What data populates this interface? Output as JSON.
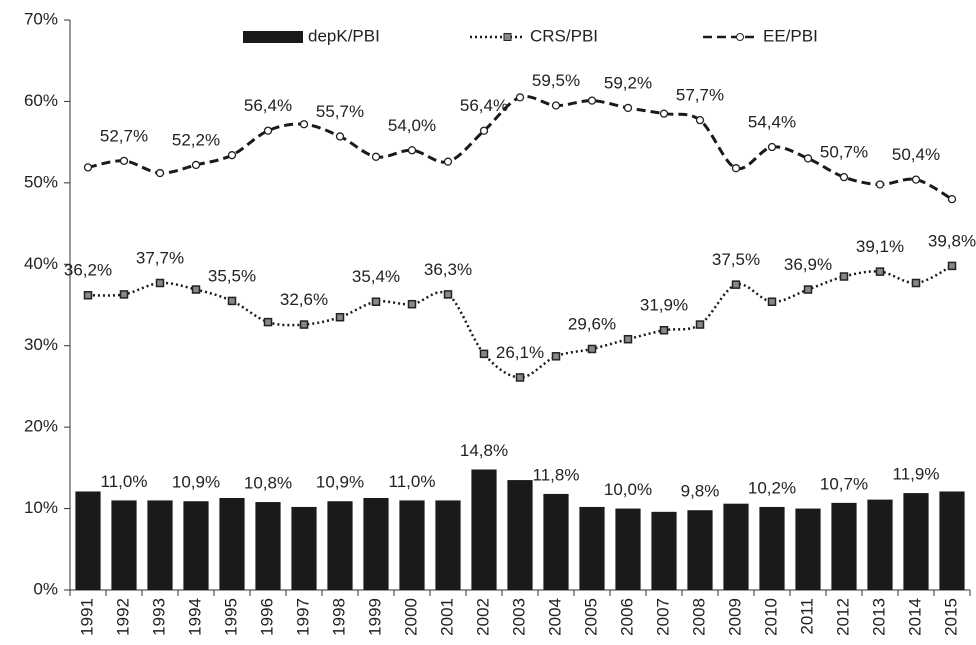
{
  "chart_data": {
    "type": "bar",
    "categories": [
      "1991",
      "1992",
      "1993",
      "1994",
      "1995",
      "1996",
      "1997",
      "1998",
      "1999",
      "2000",
      "2001",
      "2002",
      "2003",
      "2004",
      "2005",
      "2006",
      "2007",
      "2008",
      "2009",
      "2010",
      "2011",
      "2012",
      "2013",
      "2014",
      "2015"
    ],
    "ylim": [
      0,
      70
    ],
    "yticks": [
      {
        "value": 0,
        "label": "0%"
      },
      {
        "value": 10,
        "label": "10%"
      },
      {
        "value": 20,
        "label": "20%"
      },
      {
        "value": 30,
        "label": "30%"
      },
      {
        "value": 40,
        "label": "40%"
      },
      {
        "value": 50,
        "label": "50%"
      },
      {
        "value": 60,
        "label": "60%"
      },
      {
        "value": 70,
        "label": "70%"
      }
    ],
    "grid": false,
    "legend": "top",
    "series": [
      {
        "name": "depK/PBI",
        "type": "bar",
        "color": "#1a1a1a",
        "values": [
          12.1,
          11.0,
          11.0,
          10.9,
          11.3,
          10.8,
          10.2,
          10.9,
          11.3,
          11.0,
          11.0,
          14.8,
          13.5,
          11.8,
          10.2,
          10.0,
          9.6,
          9.8,
          10.6,
          10.2,
          10.0,
          10.7,
          11.1,
          11.9,
          12.1
        ],
        "value_labels": [
          null,
          "11,0%",
          null,
          "10,9%",
          null,
          "10,8%",
          null,
          "10,9%",
          null,
          "11,0%",
          null,
          "14,8%",
          null,
          "11,8%",
          null,
          "10,0%",
          null,
          "9,8%",
          null,
          "10,2%",
          null,
          "10,7%",
          null,
          "11,9%",
          null
        ]
      },
      {
        "name": "CRS/PBI",
        "type": "line",
        "style": "dotted",
        "marker": "square",
        "color": "#1a1a1a",
        "values": [
          36.2,
          36.3,
          37.7,
          36.9,
          35.5,
          32.9,
          32.6,
          33.5,
          35.4,
          35.1,
          36.3,
          29.0,
          26.1,
          28.7,
          29.6,
          30.8,
          31.9,
          32.6,
          37.5,
          35.4,
          36.9,
          38.5,
          39.1,
          37.7,
          39.8
        ],
        "value_labels": [
          "36,2%",
          null,
          "37,7%",
          null,
          "35,5%",
          null,
          "32,6%",
          null,
          "35,4%",
          null,
          "36,3%",
          null,
          "26,1%",
          null,
          "29,6%",
          null,
          "31,9%",
          null,
          "37,5%",
          null,
          "36,9%",
          null,
          "39,1%",
          null,
          "39,8%"
        ]
      },
      {
        "name": "EE/PBI",
        "type": "line",
        "style": "dashed",
        "marker": "circle",
        "color": "#1a1a1a",
        "values": [
          51.9,
          52.7,
          51.2,
          52.2,
          53.4,
          56.4,
          57.2,
          55.7,
          53.2,
          54.0,
          52.6,
          56.4,
          60.5,
          59.5,
          60.1,
          59.2,
          58.5,
          57.7,
          51.8,
          54.4,
          53.0,
          50.7,
          49.8,
          50.4,
          48.0
        ],
        "value_labels": [
          null,
          "52,7%",
          null,
          "52,2%",
          null,
          "56,4%",
          null,
          "55,7%",
          null,
          "54,0%",
          null,
          "56,4%",
          null,
          "59,5%",
          null,
          "59,2%",
          null,
          "57,7%",
          null,
          "54,4%",
          null,
          "50,7%",
          null,
          "50,4%",
          null
        ]
      }
    ]
  }
}
